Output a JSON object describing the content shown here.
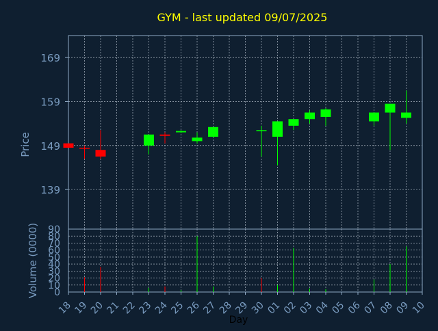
{
  "title": "GYM - last updated 09/07/2025",
  "colors": {
    "background": "#0f1f30",
    "axis": "#8ea8c3",
    "grid": "#c8d2dc",
    "title": "#ffff00",
    "up": "#00ff00",
    "down": "#ff0000",
    "text": "#7a9cc0"
  },
  "chart_data": [
    {
      "type": "candlestick",
      "ylabel": "Price",
      "ylim": [
        130,
        174
      ],
      "yticks": [
        139,
        149,
        159,
        169
      ],
      "grid": true,
      "x": [
        "18",
        "19",
        "20",
        "21",
        "22",
        "23",
        "24",
        "25",
        "26",
        "27",
        "28",
        "29",
        "30",
        "01",
        "02",
        "03",
        "04",
        "05",
        "06",
        "07",
        "08",
        "09",
        "10"
      ],
      "candles": [
        {
          "x": "18",
          "open": 149.5,
          "high": 149.5,
          "low": 148.5,
          "close": 148.5
        },
        {
          "x": "19",
          "open": 148.5,
          "high": 149.0,
          "low": 146.0,
          "close": 148.3
        },
        {
          "x": "20",
          "open": 148.0,
          "high": 152.5,
          "low": 146.0,
          "close": 146.5
        },
        {
          "x": "23",
          "open": 149.0,
          "high": 151.5,
          "low": 147.0,
          "close": 151.5
        },
        {
          "x": "24",
          "open": 151.5,
          "high": 152.0,
          "low": 149.5,
          "close": 151.2
        },
        {
          "x": "25",
          "open": 152.0,
          "high": 152.5,
          "low": 151.8,
          "close": 152.3
        },
        {
          "x": "26",
          "open": 150.0,
          "high": 152.0,
          "low": 149.5,
          "close": 150.8
        },
        {
          "x": "27",
          "open": 151.0,
          "high": 153.2,
          "low": 150.8,
          "close": 153.2
        },
        {
          "x": "30",
          "open": 152.5,
          "high": 153.5,
          "low": 146.5,
          "close": 152.5
        },
        {
          "x": "01",
          "open": 151.0,
          "high": 154.5,
          "low": 144.5,
          "close": 154.5
        },
        {
          "x": "02",
          "open": 153.5,
          "high": 155.0,
          "low": 152.5,
          "close": 155.0
        },
        {
          "x": "03",
          "open": 155.0,
          "high": 157.0,
          "low": 154.0,
          "close": 156.5
        },
        {
          "x": "04",
          "open": 155.5,
          "high": 157.5,
          "low": 153.5,
          "close": 157.2
        },
        {
          "x": "07",
          "open": 154.5,
          "high": 156.5,
          "low": 153.5,
          "close": 156.5
        },
        {
          "x": "08",
          "open": 156.5,
          "high": 158.5,
          "low": 148.0,
          "close": 158.5
        },
        {
          "x": "09",
          "open": 155.3,
          "high": 161.5,
          "low": 154.0,
          "close": 156.5
        }
      ]
    },
    {
      "type": "bar",
      "ylabel": "Volume (0000)",
      "xlabel": "Day",
      "ylim": [
        0,
        90
      ],
      "yticks": [
        0,
        10,
        20,
        30,
        40,
        50,
        60,
        70,
        80,
        90
      ],
      "grid": true,
      "categories": [
        "18",
        "19",
        "20",
        "21",
        "22",
        "23",
        "24",
        "25",
        "26",
        "27",
        "28",
        "29",
        "30",
        "01",
        "02",
        "03",
        "04",
        "05",
        "06",
        "07",
        "08",
        "09",
        "10"
      ],
      "bars": [
        {
          "x": "18",
          "value": 0,
          "direction": "down"
        },
        {
          "x": "19",
          "value": 21,
          "direction": "down"
        },
        {
          "x": "20",
          "value": 36,
          "direction": "down"
        },
        {
          "x": "23",
          "value": 6,
          "direction": "up"
        },
        {
          "x": "24",
          "value": 8,
          "direction": "down"
        },
        {
          "x": "25",
          "value": 3,
          "direction": "up"
        },
        {
          "x": "26",
          "value": 80,
          "direction": "up"
        },
        {
          "x": "27",
          "value": 8,
          "direction": "up"
        },
        {
          "x": "30",
          "value": 20,
          "direction": "down"
        },
        {
          "x": "01",
          "value": 10,
          "direction": "up"
        },
        {
          "x": "02",
          "value": 63,
          "direction": "up"
        },
        {
          "x": "03",
          "value": 5,
          "direction": "up"
        },
        {
          "x": "04",
          "value": 4,
          "direction": "up"
        },
        {
          "x": "07",
          "value": 18,
          "direction": "up"
        },
        {
          "x": "08",
          "value": 40,
          "direction": "up"
        },
        {
          "x": "09",
          "value": 65,
          "direction": "up"
        }
      ]
    }
  ]
}
